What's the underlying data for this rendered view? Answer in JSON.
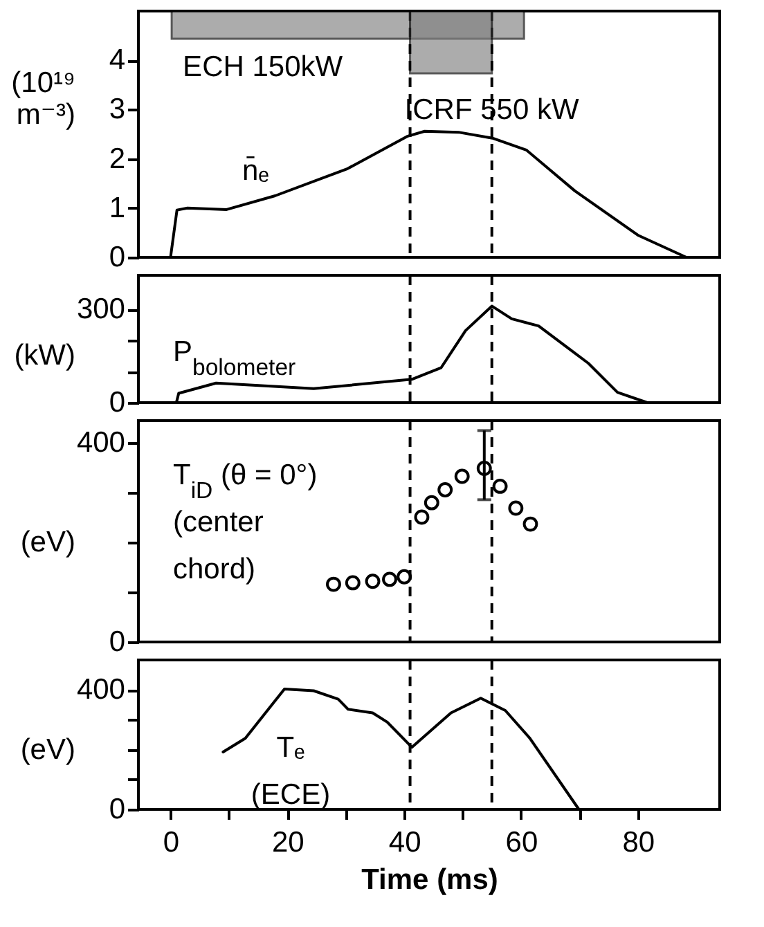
{
  "chart_data": [
    {
      "type": "line",
      "ylabel": "(10¹⁹ m⁻³)",
      "xlim": [
        -5.5,
        94
      ],
      "ylim": [
        0,
        5
      ],
      "yticks": [
        0,
        1,
        2,
        3,
        4
      ],
      "tick_labels": "y",
      "line_style": "solid",
      "series": [
        {
          "name": "n̄ₑ",
          "color": "#000000",
          "x": [
            0,
            1.1,
            2.9,
            9.6,
            17.9,
            30.3,
            40.6,
            43.5,
            49.3,
            55.1,
            60.9,
            69.2,
            80,
            88.3
          ],
          "values": [
            0,
            0.96,
            1.0,
            0.97,
            1.25,
            1.8,
            2.46,
            2.56,
            2.54,
            2.42,
            2.18,
            1.35,
            0.45,
            0
          ]
        }
      ],
      "bands": [
        {
          "axis": "x",
          "from": 0.2,
          "to": 60.5,
          "label": "ECH 150kW",
          "color": "#808080"
        },
        {
          "axis": "x",
          "from": 41,
          "to": 55,
          "label": "ICRF 550 kW",
          "color": "#808080"
        }
      ],
      "ref_lines": [
        {
          "axis": "x",
          "value": 41,
          "line_style": "dashed"
        },
        {
          "axis": "x",
          "value": 55,
          "line_style": "dashed"
        }
      ]
    },
    {
      "type": "line",
      "ylabel": "(kW)",
      "xlim": [
        -5.5,
        94
      ],
      "ylim": [
        0,
        410
      ],
      "yticks": [
        0,
        {
          "value": 100,
          "label": null
        },
        {
          "value": 200,
          "label": null
        },
        300
      ],
      "tick_labels": "y",
      "line_style": "solid",
      "series": [
        {
          "name": "P$_{bolometer}$",
          "color": "#000000",
          "x": [
            1,
            1.4,
            7.8,
            24.5,
            41.3,
            46.3,
            50.5,
            55,
            58.4,
            63,
            71.5,
            76.5,
            81.6
          ],
          "values": [
            0,
            30,
            63,
            45,
            75,
            112,
            232,
            311,
            270,
            247,
            127,
            33,
            0
          ]
        }
      ],
      "ref_lines": [
        {
          "axis": "x",
          "value": 41,
          "line_style": "dashed"
        },
        {
          "axis": "x",
          "value": 55,
          "line_style": "dashed"
        }
      ]
    },
    {
      "type": "scatter",
      "ylabel": "(eV)",
      "xlim": [
        -5.5,
        94
      ],
      "ylim": [
        0,
        445
      ],
      "yticks": [
        0,
        {
          "value": 100,
          "label": null
        },
        {
          "value": 200,
          "label": null
        },
        {
          "value": 300,
          "label": null
        },
        400
      ],
      "tick_labels": "y",
      "marker": "circle",
      "series": [
        {
          "name": "T$_{iD}$ (θ = 0°) (center chord)",
          "color": "#000000",
          "x": [
            27.9,
            31.2,
            34.6,
            37.5,
            40.0,
            43.0,
            44.7,
            47.0,
            49.9,
            53.7,
            56.4,
            59.1,
            61.6
          ],
          "values": [
            116,
            119,
            122,
            126,
            131,
            251,
            280,
            306,
            333,
            349,
            313,
            269,
            237
          ],
          "errors": [
            null,
            null,
            null,
            null,
            null,
            null,
            null,
            null,
            null,
            [
              286,
              425
            ],
            null,
            null,
            null
          ]
        }
      ],
      "ref_lines": [
        {
          "axis": "x",
          "value": 41,
          "line_style": "dashed"
        },
        {
          "axis": "x",
          "value": 55,
          "line_style": "dashed"
        }
      ]
    },
    {
      "type": "line",
      "xlabel": "Time (ms)",
      "ylabel": "(eV)",
      "xlim": [
        -5.5,
        94
      ],
      "ylim": [
        0,
        500
      ],
      "xticks": [
        0,
        {
          "value": 10,
          "label": null
        },
        20,
        {
          "value": 30,
          "label": null
        },
        40,
        {
          "value": 50,
          "label": null
        },
        60,
        {
          "value": 70,
          "label": null
        },
        80
      ],
      "yticks": [
        0,
        {
          "value": 100,
          "label": null
        },
        {
          "value": 200,
          "label": null
        },
        {
          "value": 300,
          "label": null
        },
        400
      ],
      "line_style": "solid",
      "series": [
        {
          "name": "Tₑ (ECE)",
          "color": "#000000",
          "x": [
            9.0,
            12.8,
            19.5,
            24.5,
            28.7,
            30.4,
            34.6,
            37.1,
            41.3,
            48,
            53.1,
            57.3,
            61.5,
            69.9
          ],
          "values": [
            192,
            238,
            403,
            397,
            369,
            335,
            323,
            292,
            208,
            323,
            372,
            331,
            238,
            0
          ]
        }
      ],
      "ref_lines": [
        {
          "axis": "x",
          "value": 41,
          "line_style": "dashed"
        },
        {
          "axis": "x",
          "value": 55,
          "line_style": "dashed"
        }
      ]
    }
  ]
}
